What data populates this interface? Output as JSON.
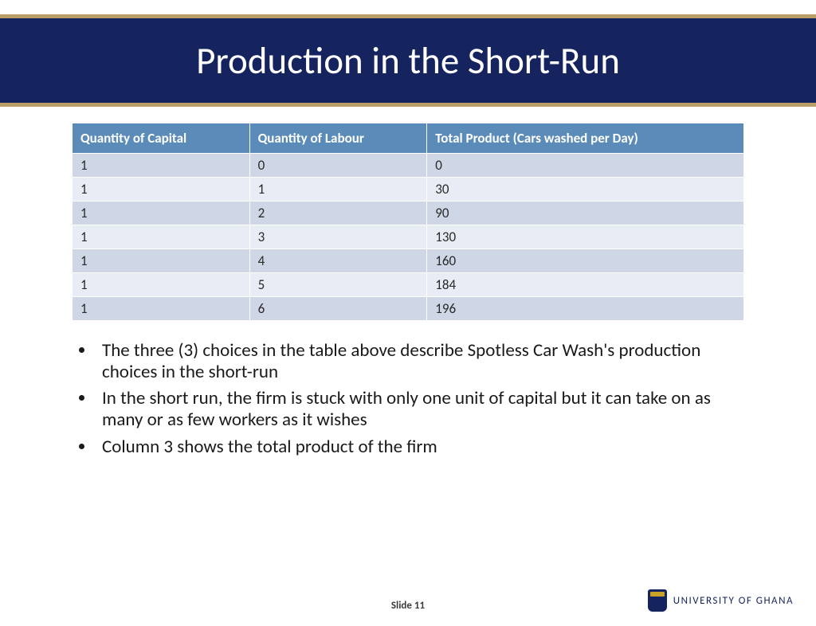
{
  "header": {
    "title": "Production in the Short-Run",
    "banner_bg": "#15235f",
    "banner_border": "#b99e66",
    "title_color": "#ffffff",
    "title_fontsize": 47
  },
  "table": {
    "header_bg": "#5b8cb9",
    "header_text_color": "#ffffff",
    "row_odd_bg": "#cfd6e5",
    "row_even_bg": "#e8ecf4",
    "cell_fontsize": 17,
    "columns": [
      "Quantity of Capital",
      "Quantity of Labour",
      "Total Product (Cars washed per Day)"
    ],
    "rows": [
      [
        "1",
        "0",
        "0"
      ],
      [
        "1",
        "1",
        "30"
      ],
      [
        "1",
        "2",
        "90"
      ],
      [
        "1",
        "3",
        "130"
      ],
      [
        "1",
        "4",
        "160"
      ],
      [
        "1",
        "5",
        "184"
      ],
      [
        "1",
        "6",
        "196"
      ]
    ]
  },
  "bullets": {
    "fontsize": 23,
    "items": [
      "The three (3) choices in the table above describe Spotless Car Wash's production choices in the short-run",
      "In the short run, the firm is stuck with only one unit of capital but it can take on as many or as few workers as it wishes",
      "Column 3 shows the total product of the firm"
    ]
  },
  "footer": {
    "slide_label": "Slide 11",
    "university": "UNIVERSITY OF GHANA",
    "university_color": "#15235f"
  }
}
